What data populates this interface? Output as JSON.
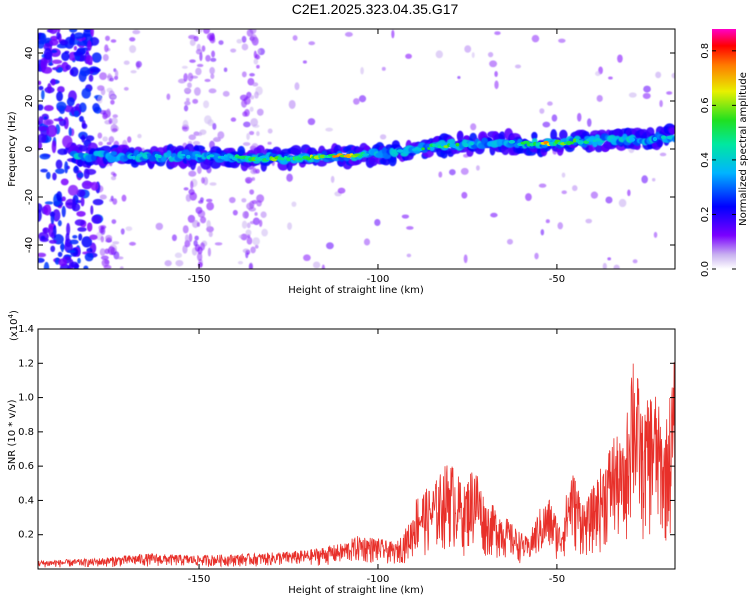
{
  "title": "C2E1.2025.323.04.35.G17",
  "chart_data": [
    {
      "type": "heatmap",
      "title": "C2E1.2025.323.04.35.G17",
      "xlabel": "Height of straight line (km)",
      "ylabel": "Frequency (Hz)",
      "xlim": [
        -195,
        -17
      ],
      "ylim": [
        -50,
        50
      ],
      "xticks": [
        -150,
        -100,
        -50
      ],
      "xtick_labels": [
        "-150",
        "-100",
        "-50"
      ],
      "yticks": [
        -40,
        -20,
        0,
        20,
        40
      ],
      "ytick_labels": [
        "-40",
        "-20",
        "0",
        "20",
        "40"
      ],
      "colorbar": {
        "label": "Normalized spectral amplitude",
        "range": [
          0.0,
          0.88
        ],
        "ticks": [
          0.0,
          0.2,
          0.4,
          0.6,
          0.8
        ],
        "tick_labels": [
          "0.0",
          "0.2",
          "0.4",
          "0.6",
          "0.8"
        ],
        "colormap": "rainbow (white-violet-blue-cyan-green-yellow-red-magenta)"
      },
      "ridge": {
        "description": "dominant spectral ridge (frequency vs height)",
        "x": [
          -185,
          -170,
          -150,
          -130,
          -110,
          -100,
          -92,
          -85,
          -75,
          -65,
          -55,
          -45,
          -35,
          -25,
          -18
        ],
        "y": [
          -3,
          -3,
          -3,
          -4,
          -3,
          -2,
          -1,
          1,
          2,
          3,
          2,
          3,
          4,
          4,
          5
        ],
        "peak_amplitude": [
          0.3,
          0.45,
          0.5,
          0.7,
          0.88,
          0.5,
          0.45,
          0.75,
          0.6,
          0.35,
          0.88,
          0.7,
          0.4,
          0.45,
          0.5
        ]
      }
    },
    {
      "type": "line",
      "xlabel": "Height of straight line (km)",
      "ylabel": "SNR (10 * v/v)",
      "y_multiplier": "(x10",
      "y_multiplier_exp": "4",
      "y_multiplier_close": ")",
      "xlim": [
        -195,
        -17
      ],
      "ylim": [
        0,
        14000
      ],
      "xticks": [
        -150,
        -100,
        -50
      ],
      "xtick_labels": [
        "-150",
        "-100",
        "-50"
      ],
      "yticks": [
        2000,
        4000,
        6000,
        8000,
        10000,
        12000,
        14000
      ],
      "ytick_labels": [
        "0.2",
        "0.4",
        "0.6",
        "0.8",
        "1.0",
        "1.2",
        "1.4"
      ],
      "series": [
        {
          "name": "SNR",
          "color": "#e8302a",
          "envelope": {
            "description": "approximate upper envelope of a noisy SNR trace",
            "x": [
              -195,
              -180,
              -165,
              -150,
              -135,
              -120,
              -110,
              -105,
              -100,
              -95,
              -91,
              -89,
              -85,
              -80,
              -76,
              -73,
              -70,
              -66,
              -62,
              -58,
              -55,
              -52,
              -49,
              -46,
              -42,
              -38,
              -34,
              -31,
              -29,
              -26,
              -23,
              -20,
              -17
            ],
            "y": [
              500,
              600,
              900,
              800,
              900,
              1100,
              1500,
              2000,
              1800,
              1500,
              2800,
              4500,
              4800,
              6500,
              4800,
              6400,
              4000,
              3500,
              2500,
              1800,
              3500,
              4200,
              2500,
              6000,
              3800,
              5800,
              8000,
              7000,
              14000,
              9000,
              11000,
              8000,
              12500
            ]
          }
        }
      ]
    }
  ]
}
